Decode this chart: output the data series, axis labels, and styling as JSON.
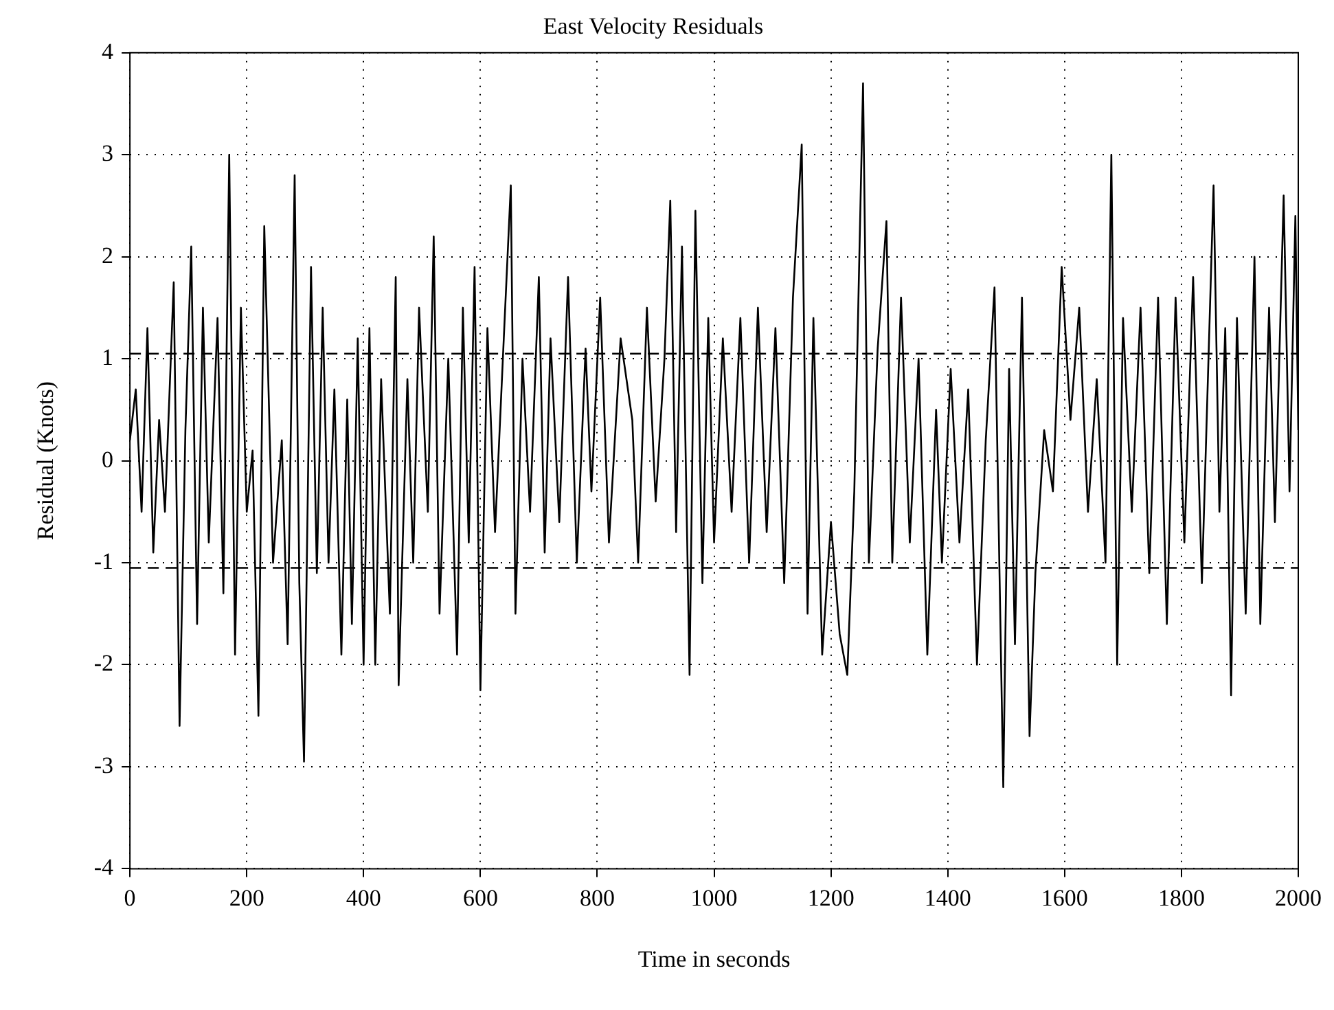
{
  "chart_data": {
    "type": "line",
    "title": "East Velocity Residuals",
    "xlabel": "Time in seconds",
    "ylabel": "Residual (Knots)",
    "xlim": [
      0,
      2000
    ],
    "xticks": [
      0,
      200,
      400,
      600,
      800,
      1000,
      1200,
      1400,
      1600,
      1800,
      2000
    ],
    "ylim": [
      -4,
      4
    ],
    "yticks": [
      -4,
      -3,
      -2,
      -1,
      0,
      1,
      2,
      3,
      4
    ],
    "grid": true,
    "legend": false,
    "marker": "none",
    "line_style": "solid",
    "ref_lines": [
      {
        "axis": "y",
        "value": 1.05,
        "line_style": "dashed",
        "color": "#000000"
      },
      {
        "axis": "y",
        "value": -1.05,
        "line_style": "dashed",
        "color": "#000000"
      }
    ],
    "x": [
      0,
      10,
      20,
      30,
      40,
      50,
      60,
      75,
      85,
      95,
      105,
      115,
      125,
      135,
      150,
      160,
      170,
      180,
      190,
      200,
      210,
      220,
      230,
      245,
      260,
      270,
      282,
      290,
      298,
      310,
      320,
      330,
      340,
      350,
      362,
      372,
      380,
      390,
      400,
      410,
      420,
      430,
      445,
      455,
      460,
      475,
      485,
      495,
      510,
      520,
      530,
      545,
      560,
      570,
      580,
      590,
      600,
      612,
      625,
      640,
      652,
      660,
      672,
      685,
      700,
      710,
      720,
      735,
      750,
      765,
      780,
      790,
      805,
      820,
      840,
      860,
      870,
      885,
      900,
      915,
      925,
      935,
      945,
      958,
      968,
      980,
      990,
      1000,
      1015,
      1030,
      1045,
      1060,
      1075,
      1090,
      1105,
      1120,
      1135,
      1150,
      1160,
      1170,
      1185,
      1200,
      1215,
      1228,
      1240,
      1255,
      1265,
      1280,
      1295,
      1305,
      1320,
      1335,
      1350,
      1365,
      1380,
      1390,
      1405,
      1420,
      1435,
      1450,
      1465,
      1480,
      1495,
      1505,
      1515,
      1527,
      1540,
      1550,
      1565,
      1580,
      1595,
      1610,
      1625,
      1640,
      1655,
      1670,
      1680,
      1690,
      1700,
      1715,
      1730,
      1745,
      1760,
      1775,
      1790,
      1805,
      1820,
      1835,
      1855,
      1865,
      1875,
      1885,
      1895,
      1910,
      1925,
      1935,
      1950,
      1960,
      1975,
      1985,
      1995,
      2000
    ],
    "series": [
      {
        "color": "#000000",
        "values": [
          0.2,
          0.7,
          -0.5,
          1.3,
          -0.9,
          0.4,
          -0.5,
          1.75,
          -2.6,
          0.3,
          2.1,
          -1.6,
          1.5,
          -0.8,
          1.4,
          -1.3,
          3.0,
          -1.9,
          1.5,
          -0.5,
          0.1,
          -2.5,
          2.3,
          -1.0,
          0.2,
          -1.8,
          2.8,
          -1.2,
          -2.95,
          1.9,
          -1.1,
          1.5,
          -1.0,
          0.7,
          -1.9,
          0.6,
          -1.6,
          1.2,
          -2.0,
          1.3,
          -2.0,
          0.8,
          -1.5,
          1.8,
          -2.2,
          0.8,
          -1.0,
          1.5,
          -0.5,
          2.2,
          -1.5,
          1.0,
          -1.9,
          1.5,
          -0.8,
          1.9,
          -2.25,
          1.3,
          -0.7,
          1.2,
          2.7,
          -1.5,
          1.0,
          -0.5,
          1.8,
          -0.9,
          1.2,
          -0.6,
          1.8,
          -1.0,
          1.1,
          -0.3,
          1.6,
          -0.8,
          1.2,
          0.4,
          -1.0,
          1.5,
          -0.4,
          1.0,
          2.55,
          -0.7,
          2.1,
          -2.1,
          2.45,
          -1.2,
          1.4,
          -0.8,
          1.2,
          -0.5,
          1.4,
          -1.0,
          1.5,
          -0.7,
          1.3,
          -1.2,
          1.6,
          3.1,
          -1.5,
          1.4,
          -1.9,
          -0.6,
          -1.7,
          -2.1,
          -0.3,
          3.7,
          -1.0,
          1.1,
          2.35,
          -1.0,
          1.6,
          -0.8,
          1.0,
          -1.9,
          0.5,
          -1.0,
          0.9,
          -0.8,
          0.7,
          -2.0,
          0.2,
          1.7,
          -3.2,
          0.9,
          -1.8,
          1.6,
          -2.7,
          -1.1,
          0.3,
          -0.3,
          1.9,
          0.4,
          1.5,
          -0.5,
          0.8,
          -1.0,
          3.0,
          -2.0,
          1.4,
          -0.5,
          1.5,
          -1.1,
          1.6,
          -1.6,
          1.6,
          -0.8,
          1.8,
          -1.2,
          2.7,
          -0.5,
          1.3,
          -2.3,
          1.4,
          -1.5,
          2.0,
          -1.6,
          1.5,
          -0.6,
          2.6,
          -0.3,
          2.4,
          0.3
        ]
      }
    ]
  }
}
